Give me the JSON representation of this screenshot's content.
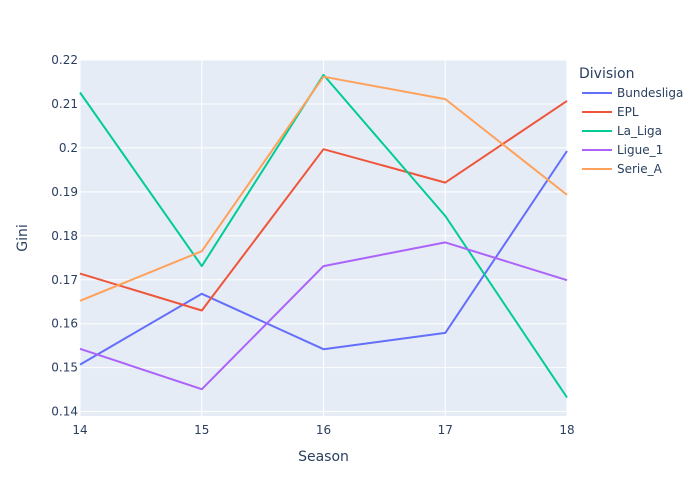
{
  "chart_data": {
    "type": "line",
    "xlabel": "Season",
    "ylabel": "Gini",
    "x": [
      14,
      15,
      16,
      17,
      18
    ],
    "xlim": [
      14,
      18
    ],
    "ylim": [
      0.139,
      0.22
    ],
    "x_ticks": [
      "14",
      "15",
      "16",
      "17",
      "18"
    ],
    "y_ticks": [
      0.14,
      0.15,
      0.16,
      0.17,
      0.18,
      0.19,
      0.2,
      0.21,
      0.22
    ],
    "y_tick_labels": [
      "0.14",
      "0.15",
      "0.16",
      "0.17",
      "0.18",
      "0.19",
      "0.2",
      "0.21",
      "0.22"
    ],
    "grid": true,
    "legend": {
      "title": "Division",
      "placement": "right"
    },
    "series": [
      {
        "name": "Bundesliga",
        "color": "#636efa",
        "values": [
          0.1507,
          0.1668,
          0.1542,
          0.1579,
          0.1993
        ]
      },
      {
        "name": "EPL",
        "color": "#EF553B",
        "values": [
          0.1714,
          0.163,
          0.1997,
          0.1921,
          0.2107
        ]
      },
      {
        "name": "La_Liga",
        "color": "#00cc96",
        "values": [
          0.2126,
          0.1731,
          0.2166,
          0.1845,
          0.1432
        ]
      },
      {
        "name": "Ligue_1",
        "color": "#ab63fa",
        "values": [
          0.1543,
          0.1451,
          0.1731,
          0.1785,
          0.1699
        ]
      },
      {
        "name": "Serie_A",
        "color": "#FFA15A",
        "values": [
          0.1652,
          0.1765,
          0.2162,
          0.2111,
          0.1893
        ]
      }
    ]
  }
}
